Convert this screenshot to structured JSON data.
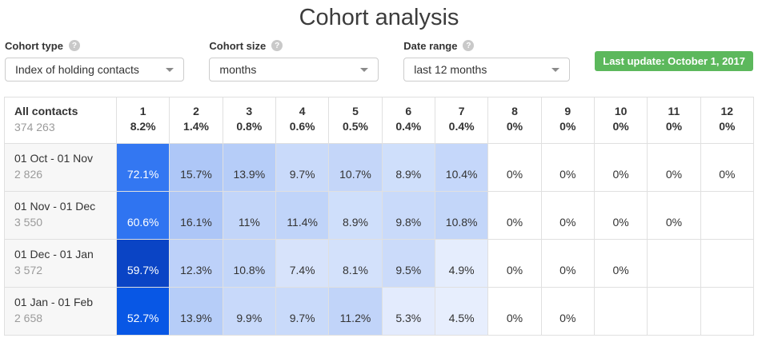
{
  "page": {
    "title": "Cohort analysis"
  },
  "filters": [
    {
      "label": "Cohort type",
      "value": "Index of holding contacts",
      "help_icon": "question-circle"
    },
    {
      "label": "Cohort size",
      "value": "months",
      "help_icon": "question-circle"
    },
    {
      "label": "Date range",
      "value": "last 12 months",
      "help_icon": "question-circle"
    }
  ],
  "badge": {
    "text": "Last update: October 1, 2017",
    "color": "#5cb85c"
  },
  "table": {
    "header": {
      "label": "All contacts",
      "count": "374 263",
      "columns": [
        {
          "n": "1",
          "pct": "8.2%"
        },
        {
          "n": "2",
          "pct": "1.4%"
        },
        {
          "n": "3",
          "pct": "0.8%"
        },
        {
          "n": "4",
          "pct": "0.6%"
        },
        {
          "n": "5",
          "pct": "0.5%"
        },
        {
          "n": "6",
          "pct": "0.4%"
        },
        {
          "n": "7",
          "pct": "0.4%"
        },
        {
          "n": "8",
          "pct": "0%"
        },
        {
          "n": "9",
          "pct": "0%"
        },
        {
          "n": "10",
          "pct": "0%"
        },
        {
          "n": "11",
          "pct": "0%"
        },
        {
          "n": "12",
          "pct": "0%"
        }
      ]
    },
    "rows": [
      {
        "label": "01 Oct - 01 Nov",
        "count": "2 826",
        "cells": [
          {
            "v": "72.1%",
            "bg": "#3377f2",
            "fg": "#ffffff"
          },
          {
            "v": "15.7%",
            "bg": "#aec7f7"
          },
          {
            "v": "13.9%",
            "bg": "#b6cdf8"
          },
          {
            "v": "9.7%",
            "bg": "#c9dafa"
          },
          {
            "v": "10.7%",
            "bg": "#c4d6f9"
          },
          {
            "v": "8.9%",
            "bg": "#cfdffb"
          },
          {
            "v": "10.4%",
            "bg": "#c5d7fa"
          },
          {
            "v": "0%"
          },
          {
            "v": "0%"
          },
          {
            "v": "0%"
          },
          {
            "v": "0%"
          },
          {
            "v": "0%"
          }
        ]
      },
      {
        "label": "01 Nov - 01 Dec",
        "count": "3 550",
        "cells": [
          {
            "v": "60.6%",
            "bg": "#2f74f1",
            "fg": "#ffffff"
          },
          {
            "v": "16.1%",
            "bg": "#adc6f7"
          },
          {
            "v": "11%",
            "bg": "#c2d5f9"
          },
          {
            "v": "11.4%",
            "bg": "#c0d4f9"
          },
          {
            "v": "8.9%",
            "bg": "#cfdffb"
          },
          {
            "v": "9.8%",
            "bg": "#c9dafa"
          },
          {
            "v": "10.8%",
            "bg": "#c3d6f9"
          },
          {
            "v": "0%"
          },
          {
            "v": "0%"
          },
          {
            "v": "0%"
          },
          {
            "v": "0%"
          }
        ]
      },
      {
        "label": "01 Dec - 01 Jan",
        "count": "3 572",
        "cells": [
          {
            "v": "59.7%",
            "bg": "#0a44c5",
            "fg": "#ffffff"
          },
          {
            "v": "12.3%",
            "bg": "#bdd1f9"
          },
          {
            "v": "10.8%",
            "bg": "#c3d6f9"
          },
          {
            "v": "7.4%",
            "bg": "#d7e3fb"
          },
          {
            "v": "8.1%",
            "bg": "#d3e1fb"
          },
          {
            "v": "9.5%",
            "bg": "#cbdbfa"
          },
          {
            "v": "4.9%",
            "bg": "#e5edfd"
          },
          {
            "v": "0%"
          },
          {
            "v": "0%"
          },
          {
            "v": "0%"
          }
        ]
      },
      {
        "label": "01 Jan - 01 Feb",
        "count": "2 658",
        "cells": [
          {
            "v": "52.7%",
            "bg": "#0857e5",
            "fg": "#ffffff"
          },
          {
            "v": "13.9%",
            "bg": "#b6cdf8"
          },
          {
            "v": "9.9%",
            "bg": "#c8d9fa"
          },
          {
            "v": "9.7%",
            "bg": "#c9dafa"
          },
          {
            "v": "11.2%",
            "bg": "#c1d4f9"
          },
          {
            "v": "5.3%",
            "bg": "#e3ebfd"
          },
          {
            "v": "4.5%",
            "bg": "#e7eefd"
          },
          {
            "v": "0%"
          },
          {
            "v": "0%"
          }
        ]
      }
    ]
  },
  "chart_data": {
    "type": "heatmap",
    "title": "Cohort analysis",
    "columns": [
      1,
      2,
      3,
      4,
      5,
      6,
      7,
      8,
      9,
      10,
      11,
      12
    ],
    "all_contacts": {
      "total": 374263,
      "values_pct": [
        8.2,
        1.4,
        0.8,
        0.6,
        0.5,
        0.4,
        0.4,
        0,
        0,
        0,
        0,
        0
      ]
    },
    "rows": [
      {
        "cohort": "01 Oct - 01 Nov",
        "size": 2826,
        "values_pct": [
          72.1,
          15.7,
          13.9,
          9.7,
          10.7,
          8.9,
          10.4,
          0,
          0,
          0,
          0,
          0
        ]
      },
      {
        "cohort": "01 Nov - 01 Dec",
        "size": 3550,
        "values_pct": [
          60.6,
          16.1,
          11,
          11.4,
          8.9,
          9.8,
          10.8,
          0,
          0,
          0,
          0,
          null
        ]
      },
      {
        "cohort": "01 Dec - 01 Jan",
        "size": 3572,
        "values_pct": [
          59.7,
          12.3,
          10.8,
          7.4,
          8.1,
          9.5,
          4.9,
          0,
          0,
          0,
          null,
          null
        ]
      },
      {
        "cohort": "01 Jan - 01 Feb",
        "size": 2658,
        "values_pct": [
          52.7,
          13.9,
          9.9,
          9.7,
          11.2,
          5.3,
          4.5,
          0,
          0,
          null,
          null,
          null
        ]
      }
    ]
  }
}
